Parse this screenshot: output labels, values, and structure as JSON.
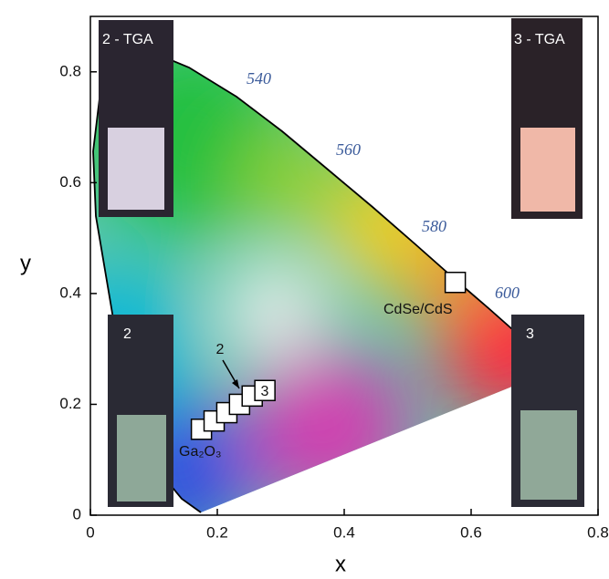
{
  "chart_data": {
    "type": "scatter",
    "xlabel": "x",
    "ylabel": "y",
    "xlim": [
      0,
      0.8
    ],
    "ylim": [
      0,
      0.9
    ],
    "xticks": [
      0,
      0.2,
      0.4,
      0.6,
      0.8
    ],
    "yticks": [
      0,
      0.2,
      0.4,
      0.6,
      0.8
    ],
    "x": [
      0.175,
      0.195,
      0.215,
      0.235,
      0.255,
      0.275,
      0.575
    ],
    "values": [
      0.155,
      0.17,
      0.185,
      0.2,
      0.215,
      0.225,
      0.42
    ],
    "color": "#ffffff",
    "wavelength_labels": [
      540,
      560,
      580,
      600
    ],
    "annotations": [
      "Ga₂O₃",
      "2",
      "3",
      "CdSe/CdS"
    ],
    "insets": [
      "2 - TGA",
      "3 - TGA",
      "2",
      "3"
    ]
  }
}
